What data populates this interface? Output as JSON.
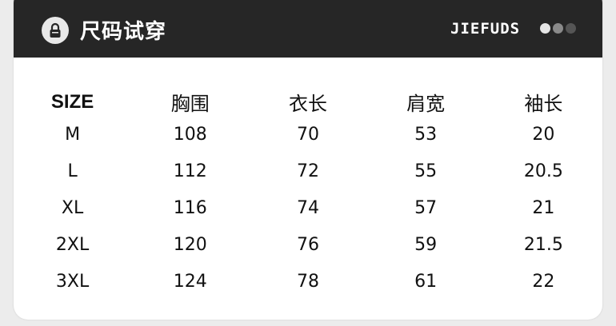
{
  "header": {
    "title": "尺码试穿",
    "brand": "JIEFUDS",
    "icon": "lock-icon",
    "dot_colors": [
      "#e6e6e6",
      "#8a8a8a",
      "#555555"
    ]
  },
  "table": {
    "columns": [
      "SIZE",
      "胸围",
      "衣长",
      "肩宽",
      "袖长"
    ],
    "rows": [
      [
        "M",
        "108",
        "70",
        "53",
        "20"
      ],
      [
        "L",
        "112",
        "72",
        "55",
        "20.5"
      ],
      [
        "XL",
        "116",
        "74",
        "57",
        "21"
      ],
      [
        "2XL",
        "120",
        "76",
        "59",
        "21.5"
      ],
      [
        "3XL",
        "124",
        "78",
        "61",
        "22"
      ]
    ]
  }
}
